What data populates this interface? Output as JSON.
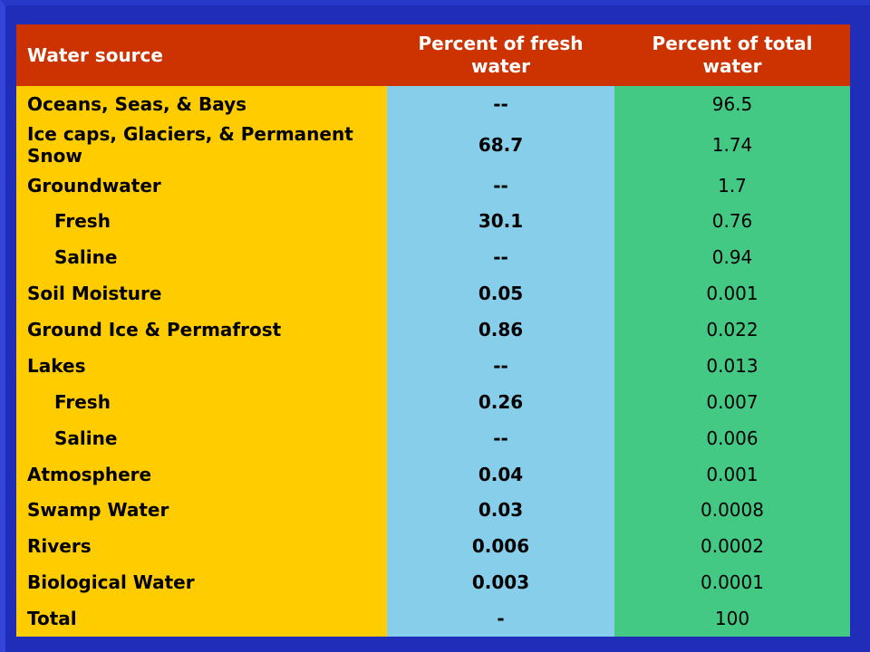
{
  "colors": {
    "background": "#1f2db8",
    "header": "#cc3300",
    "source_column": "#ffcc00",
    "fresh_column": "#87ceeb",
    "total_column": "#44c985"
  },
  "table": {
    "headers": [
      "Water source",
      "Percent of fresh water",
      "Percent of total water"
    ],
    "rows": [
      {
        "source": "Oceans, Seas, & Bays",
        "indent": false,
        "fresh": "--",
        "total": "96.5"
      },
      {
        "source": "Ice caps, Glaciers, & Permanent Snow",
        "indent": false,
        "fresh": "68.7",
        "total": "1.74"
      },
      {
        "source": "Groundwater",
        "indent": false,
        "fresh": "--",
        "total": "1.7"
      },
      {
        "source": "Fresh",
        "indent": true,
        "fresh": "30.1",
        "total": "0.76"
      },
      {
        "source": "Saline",
        "indent": true,
        "fresh": "--",
        "total": "0.94"
      },
      {
        "source": "Soil Moisture",
        "indent": false,
        "fresh": "0.05",
        "total": "0.001"
      },
      {
        "source": "Ground Ice & Permafrost",
        "indent": false,
        "fresh": "0.86",
        "total": "0.022"
      },
      {
        "source": "Lakes",
        "indent": false,
        "fresh": "--",
        "total": "0.013"
      },
      {
        "source": "Fresh",
        "indent": true,
        "fresh": "0.26",
        "total": "0.007"
      },
      {
        "source": "Saline",
        "indent": true,
        "fresh": "--",
        "total": "0.006"
      },
      {
        "source": "Atmosphere",
        "indent": false,
        "fresh": "0.04",
        "total": "0.001"
      },
      {
        "source": "Swamp Water",
        "indent": false,
        "fresh": "0.03",
        "total": "0.0008"
      },
      {
        "source": "Rivers",
        "indent": false,
        "fresh": "0.006",
        "total": "0.0002"
      },
      {
        "source": "Biological Water",
        "indent": false,
        "fresh": "0.003",
        "total": "0.0001"
      },
      {
        "source": "Total",
        "indent": false,
        "fresh": "-",
        "total": "100"
      }
    ]
  }
}
